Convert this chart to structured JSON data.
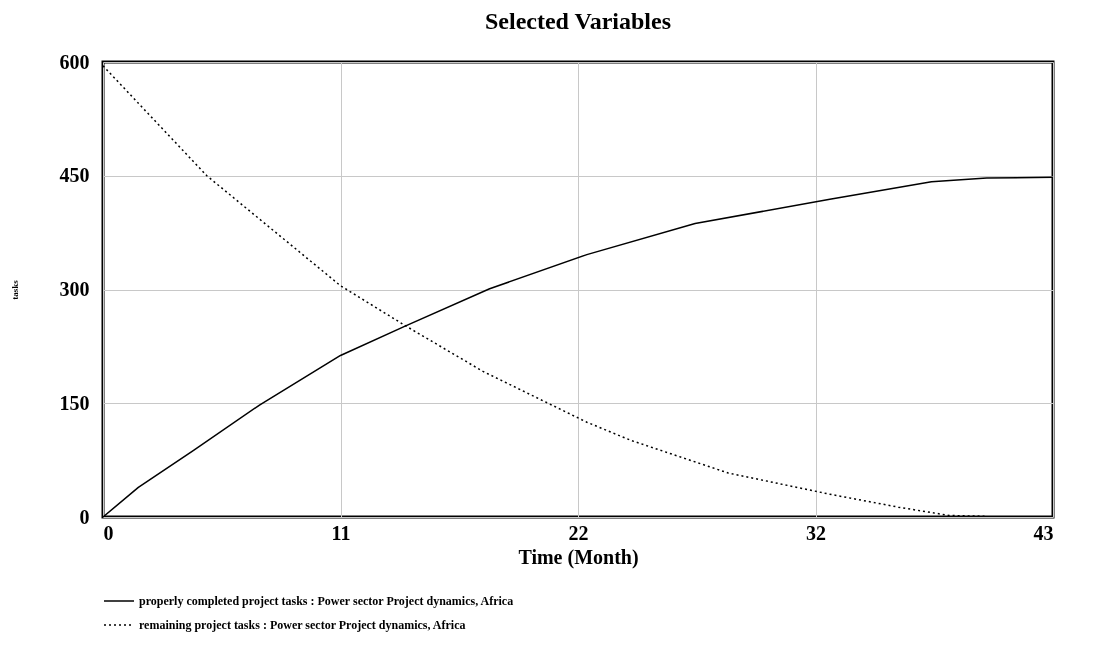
{
  "chart_data": {
    "type": "line",
    "title": "Selected Variables",
    "xlabel": "Time (Month)",
    "ylabel": "tasks",
    "xlim": [
      0,
      43
    ],
    "xticks": [
      0,
      {
        "value": 10.75,
        "label": "11"
      },
      {
        "value": 21.5,
        "label": "22"
      },
      {
        "value": 32.25,
        "label": "32"
      },
      43
    ],
    "ylim": [
      0,
      600
    ],
    "yticks": [
      0,
      150,
      300,
      450,
      600
    ],
    "grid": true,
    "legend": "bottom",
    "series": [
      {
        "name": "properly completed project tasks : Power sector Project dynamics, Africa",
        "color": "#000000",
        "line_style": "solid",
        "x": [
          0,
          1.6,
          4.1,
          7.1,
          10.75,
          13.7,
          17.5,
          21.9,
          26.8,
          32.9,
          37.5,
          40,
          43
        ],
        "values": [
          0,
          39,
          88,
          148,
          213,
          252,
          301,
          346,
          387,
          419,
          442,
          447,
          448
        ]
      },
      {
        "name": "remaining project tasks : Power sector Project dynamics, Africa",
        "color": "#000000",
        "line_style": "dotted",
        "x": [
          0,
          4.7,
          10.75,
          13.7,
          17.2,
          21.9,
          23.9,
          28.3,
          32.9,
          36,
          38.3,
          39.9
        ],
        "values": [
          595,
          450,
          305,
          252,
          192,
          125,
          101,
          58,
          30,
          13,
          2,
          1
        ]
      }
    ]
  }
}
